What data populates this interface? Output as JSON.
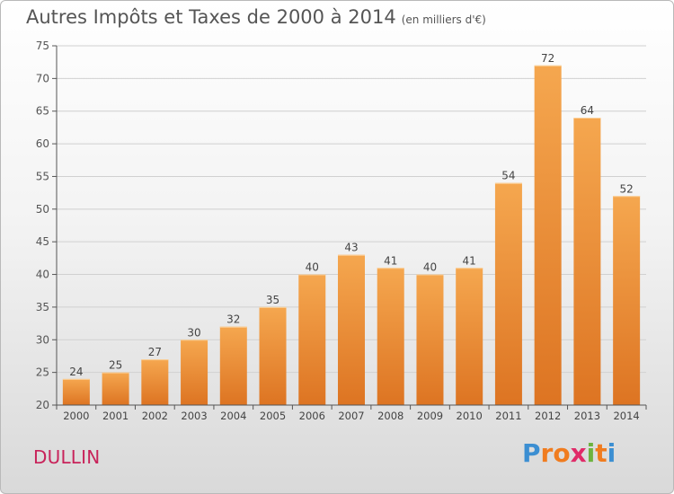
{
  "header": {
    "title": "Autres Impôts et Taxes de 2000 à 2014",
    "subtitle": "(en milliers d'€)"
  },
  "footer": {
    "location": "DULLIN",
    "logo_letters": [
      "P",
      "r",
      "o",
      "x",
      "i",
      "t",
      "i"
    ],
    "logo_colors": [
      "#3c8fd2",
      "#f07c1f",
      "#f07c1f",
      "#e02b68",
      "#6db33f",
      "#f07c1f",
      "#3c8fd2"
    ]
  },
  "colors": {
    "bar_top": "#f5a74f",
    "bar_bottom": "#dd7422",
    "axis": "#555555",
    "grid": "#d0d0d0"
  },
  "chart_data": {
    "type": "bar",
    "categories": [
      "2000",
      "2001",
      "2002",
      "2003",
      "2004",
      "2005",
      "2006",
      "2007",
      "2008",
      "2009",
      "2010",
      "2011",
      "2012",
      "2013",
      "2014"
    ],
    "values": [
      24,
      25,
      27,
      30,
      32,
      35,
      40,
      43,
      41,
      40,
      41,
      54,
      72,
      64,
      52
    ],
    "ylim": [
      20,
      75
    ],
    "yticks": [
      20,
      25,
      30,
      35,
      40,
      45,
      50,
      55,
      60,
      65,
      70,
      75
    ],
    "grid": true,
    "data_labels": true
  }
}
